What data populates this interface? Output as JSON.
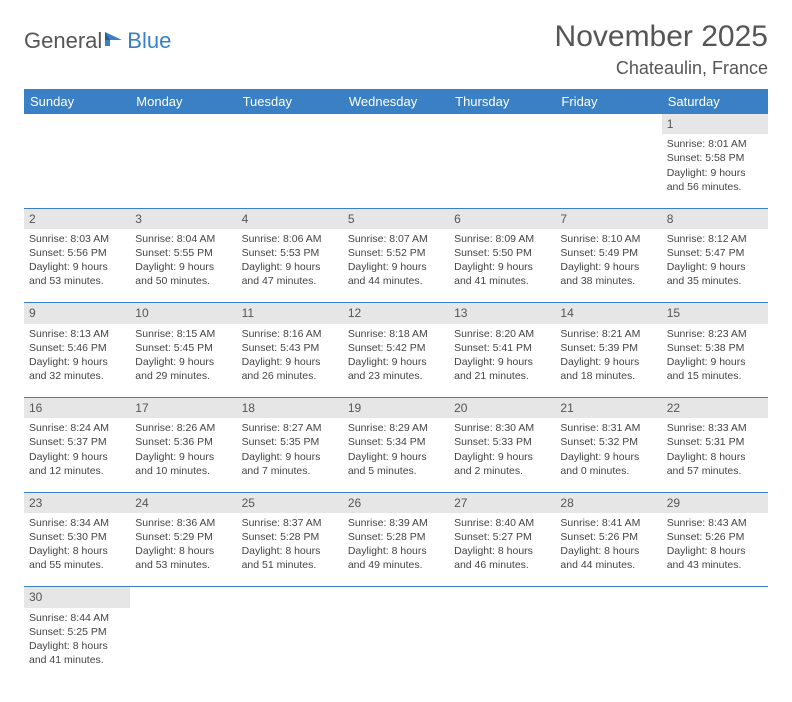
{
  "logo": {
    "part1": "General",
    "part2": "Blue"
  },
  "title": "November 2025",
  "location": "Chateaulin, France",
  "colors": {
    "header_bg": "#3b7fc4",
    "header_text": "#ffffff",
    "daynum_bg": "#e6e6e6",
    "text": "#555555",
    "border": "#3b7fc4"
  },
  "weekdays": [
    "Sunday",
    "Monday",
    "Tuesday",
    "Wednesday",
    "Thursday",
    "Friday",
    "Saturday"
  ],
  "weeks": [
    [
      null,
      null,
      null,
      null,
      null,
      null,
      {
        "n": "1",
        "sr": "Sunrise: 8:01 AM",
        "ss": "Sunset: 5:58 PM",
        "dl1": "Daylight: 9 hours",
        "dl2": "and 56 minutes."
      }
    ],
    [
      {
        "n": "2",
        "sr": "Sunrise: 8:03 AM",
        "ss": "Sunset: 5:56 PM",
        "dl1": "Daylight: 9 hours",
        "dl2": "and 53 minutes."
      },
      {
        "n": "3",
        "sr": "Sunrise: 8:04 AM",
        "ss": "Sunset: 5:55 PM",
        "dl1": "Daylight: 9 hours",
        "dl2": "and 50 minutes."
      },
      {
        "n": "4",
        "sr": "Sunrise: 8:06 AM",
        "ss": "Sunset: 5:53 PM",
        "dl1": "Daylight: 9 hours",
        "dl2": "and 47 minutes."
      },
      {
        "n": "5",
        "sr": "Sunrise: 8:07 AM",
        "ss": "Sunset: 5:52 PM",
        "dl1": "Daylight: 9 hours",
        "dl2": "and 44 minutes."
      },
      {
        "n": "6",
        "sr": "Sunrise: 8:09 AM",
        "ss": "Sunset: 5:50 PM",
        "dl1": "Daylight: 9 hours",
        "dl2": "and 41 minutes."
      },
      {
        "n": "7",
        "sr": "Sunrise: 8:10 AM",
        "ss": "Sunset: 5:49 PM",
        "dl1": "Daylight: 9 hours",
        "dl2": "and 38 minutes."
      },
      {
        "n": "8",
        "sr": "Sunrise: 8:12 AM",
        "ss": "Sunset: 5:47 PM",
        "dl1": "Daylight: 9 hours",
        "dl2": "and 35 minutes."
      }
    ],
    [
      {
        "n": "9",
        "sr": "Sunrise: 8:13 AM",
        "ss": "Sunset: 5:46 PM",
        "dl1": "Daylight: 9 hours",
        "dl2": "and 32 minutes."
      },
      {
        "n": "10",
        "sr": "Sunrise: 8:15 AM",
        "ss": "Sunset: 5:45 PM",
        "dl1": "Daylight: 9 hours",
        "dl2": "and 29 minutes."
      },
      {
        "n": "11",
        "sr": "Sunrise: 8:16 AM",
        "ss": "Sunset: 5:43 PM",
        "dl1": "Daylight: 9 hours",
        "dl2": "and 26 minutes."
      },
      {
        "n": "12",
        "sr": "Sunrise: 8:18 AM",
        "ss": "Sunset: 5:42 PM",
        "dl1": "Daylight: 9 hours",
        "dl2": "and 23 minutes."
      },
      {
        "n": "13",
        "sr": "Sunrise: 8:20 AM",
        "ss": "Sunset: 5:41 PM",
        "dl1": "Daylight: 9 hours",
        "dl2": "and 21 minutes."
      },
      {
        "n": "14",
        "sr": "Sunrise: 8:21 AM",
        "ss": "Sunset: 5:39 PM",
        "dl1": "Daylight: 9 hours",
        "dl2": "and 18 minutes."
      },
      {
        "n": "15",
        "sr": "Sunrise: 8:23 AM",
        "ss": "Sunset: 5:38 PM",
        "dl1": "Daylight: 9 hours",
        "dl2": "and 15 minutes."
      }
    ],
    [
      {
        "n": "16",
        "sr": "Sunrise: 8:24 AM",
        "ss": "Sunset: 5:37 PM",
        "dl1": "Daylight: 9 hours",
        "dl2": "and 12 minutes."
      },
      {
        "n": "17",
        "sr": "Sunrise: 8:26 AM",
        "ss": "Sunset: 5:36 PM",
        "dl1": "Daylight: 9 hours",
        "dl2": "and 10 minutes."
      },
      {
        "n": "18",
        "sr": "Sunrise: 8:27 AM",
        "ss": "Sunset: 5:35 PM",
        "dl1": "Daylight: 9 hours",
        "dl2": "and 7 minutes."
      },
      {
        "n": "19",
        "sr": "Sunrise: 8:29 AM",
        "ss": "Sunset: 5:34 PM",
        "dl1": "Daylight: 9 hours",
        "dl2": "and 5 minutes."
      },
      {
        "n": "20",
        "sr": "Sunrise: 8:30 AM",
        "ss": "Sunset: 5:33 PM",
        "dl1": "Daylight: 9 hours",
        "dl2": "and 2 minutes."
      },
      {
        "n": "21",
        "sr": "Sunrise: 8:31 AM",
        "ss": "Sunset: 5:32 PM",
        "dl1": "Daylight: 9 hours",
        "dl2": "and 0 minutes."
      },
      {
        "n": "22",
        "sr": "Sunrise: 8:33 AM",
        "ss": "Sunset: 5:31 PM",
        "dl1": "Daylight: 8 hours",
        "dl2": "and 57 minutes."
      }
    ],
    [
      {
        "n": "23",
        "sr": "Sunrise: 8:34 AM",
        "ss": "Sunset: 5:30 PM",
        "dl1": "Daylight: 8 hours",
        "dl2": "and 55 minutes."
      },
      {
        "n": "24",
        "sr": "Sunrise: 8:36 AM",
        "ss": "Sunset: 5:29 PM",
        "dl1": "Daylight: 8 hours",
        "dl2": "and 53 minutes."
      },
      {
        "n": "25",
        "sr": "Sunrise: 8:37 AM",
        "ss": "Sunset: 5:28 PM",
        "dl1": "Daylight: 8 hours",
        "dl2": "and 51 minutes."
      },
      {
        "n": "26",
        "sr": "Sunrise: 8:39 AM",
        "ss": "Sunset: 5:28 PM",
        "dl1": "Daylight: 8 hours",
        "dl2": "and 49 minutes."
      },
      {
        "n": "27",
        "sr": "Sunrise: 8:40 AM",
        "ss": "Sunset: 5:27 PM",
        "dl1": "Daylight: 8 hours",
        "dl2": "and 46 minutes."
      },
      {
        "n": "28",
        "sr": "Sunrise: 8:41 AM",
        "ss": "Sunset: 5:26 PM",
        "dl1": "Daylight: 8 hours",
        "dl2": "and 44 minutes."
      },
      {
        "n": "29",
        "sr": "Sunrise: 8:43 AM",
        "ss": "Sunset: 5:26 PM",
        "dl1": "Daylight: 8 hours",
        "dl2": "and 43 minutes."
      }
    ],
    [
      {
        "n": "30",
        "sr": "Sunrise: 8:44 AM",
        "ss": "Sunset: 5:25 PM",
        "dl1": "Daylight: 8 hours",
        "dl2": "and 41 minutes."
      },
      null,
      null,
      null,
      null,
      null,
      null
    ]
  ]
}
